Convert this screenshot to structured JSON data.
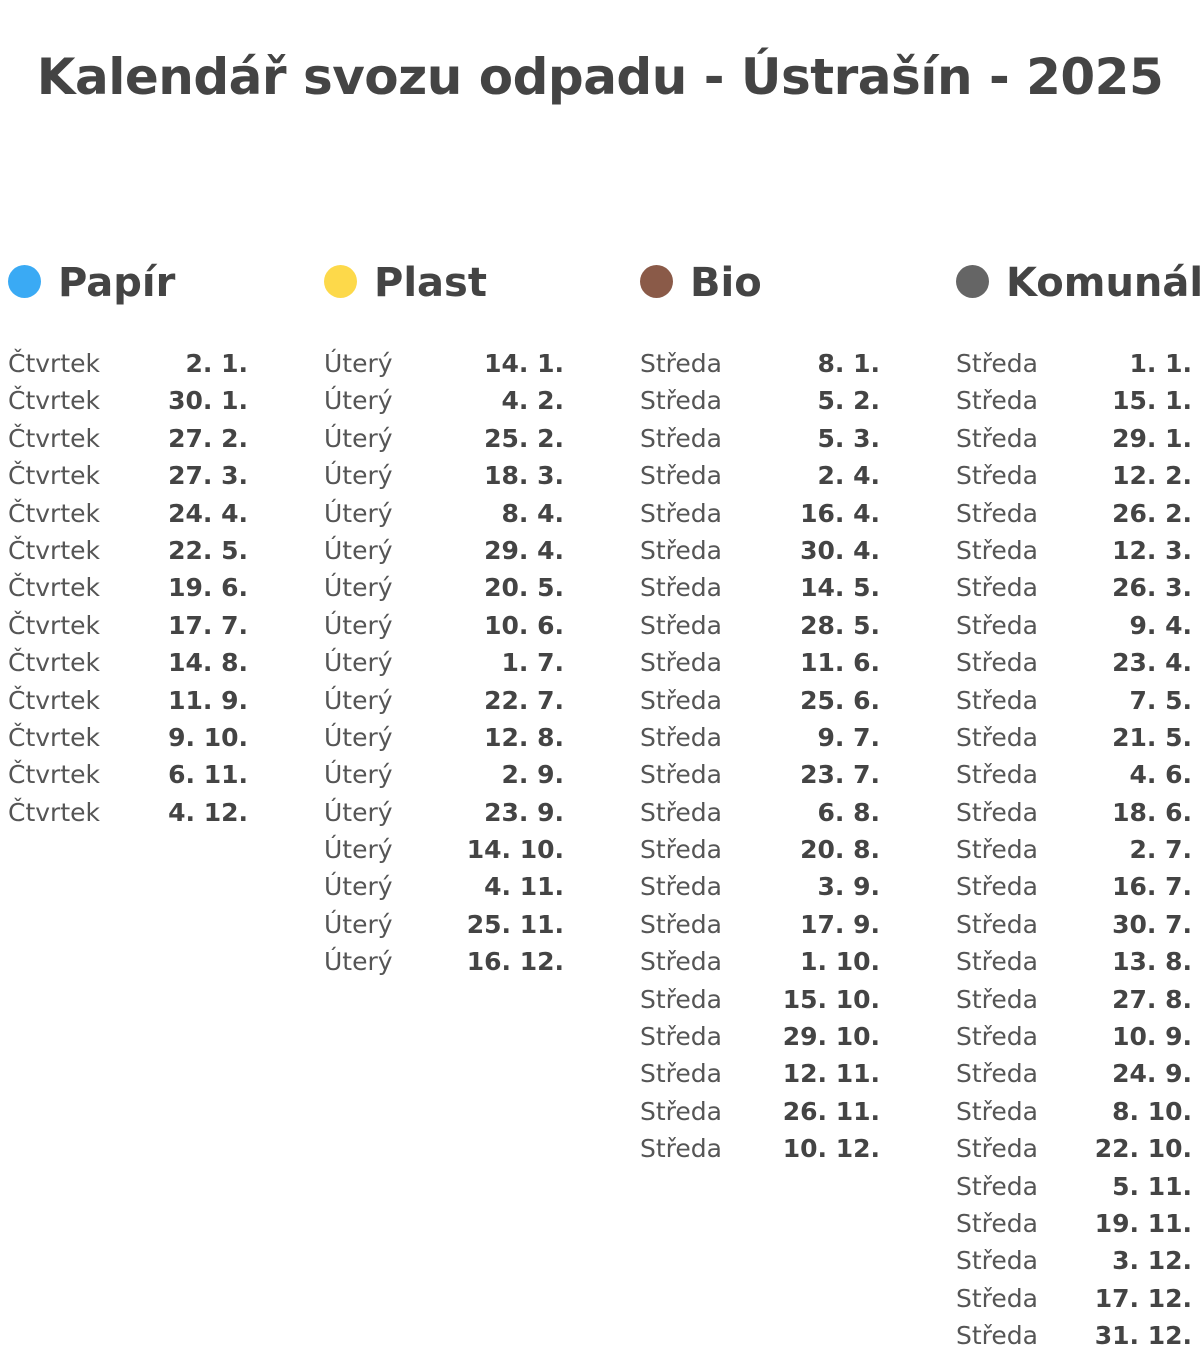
{
  "title": "Kalendář svozu odpadu - Ústrašín - 2025",
  "columns": [
    {
      "name": "Papír",
      "color": "#3aaaf4",
      "rows": [
        {
          "day": "Čtvrtek",
          "date": "2. 1."
        },
        {
          "day": "Čtvrtek",
          "date": "30. 1."
        },
        {
          "day": "Čtvrtek",
          "date": "27. 2."
        },
        {
          "day": "Čtvrtek",
          "date": "27. 3."
        },
        {
          "day": "Čtvrtek",
          "date": "24. 4."
        },
        {
          "day": "Čtvrtek",
          "date": "22. 5."
        },
        {
          "day": "Čtvrtek",
          "date": "19. 6."
        },
        {
          "day": "Čtvrtek",
          "date": "17. 7."
        },
        {
          "day": "Čtvrtek",
          "date": "14. 8."
        },
        {
          "day": "Čtvrtek",
          "date": "11. 9."
        },
        {
          "day": "Čtvrtek",
          "date": "9. 10."
        },
        {
          "day": "Čtvrtek",
          "date": "6. 11."
        },
        {
          "day": "Čtvrtek",
          "date": "4. 12."
        }
      ]
    },
    {
      "name": "Plast",
      "color": "#fdd94a",
      "rows": [
        {
          "day": "Úterý",
          "date": "14. 1."
        },
        {
          "day": "Úterý",
          "date": "4. 2."
        },
        {
          "day": "Úterý",
          "date": "25. 2."
        },
        {
          "day": "Úterý",
          "date": "18. 3."
        },
        {
          "day": "Úterý",
          "date": "8. 4."
        },
        {
          "day": "Úterý",
          "date": "29. 4."
        },
        {
          "day": "Úterý",
          "date": "20. 5."
        },
        {
          "day": "Úterý",
          "date": "10. 6."
        },
        {
          "day": "Úterý",
          "date": "1. 7."
        },
        {
          "day": "Úterý",
          "date": "22. 7."
        },
        {
          "day": "Úterý",
          "date": "12. 8."
        },
        {
          "day": "Úterý",
          "date": "2. 9."
        },
        {
          "day": "Úterý",
          "date": "23. 9."
        },
        {
          "day": "Úterý",
          "date": "14. 10."
        },
        {
          "day": "Úterý",
          "date": "4. 11."
        },
        {
          "day": "Úterý",
          "date": "25. 11."
        },
        {
          "day": "Úterý",
          "date": "16. 12."
        }
      ]
    },
    {
      "name": "Bio",
      "color": "#8a5a48",
      "rows": [
        {
          "day": "Středa",
          "date": "8. 1."
        },
        {
          "day": "Středa",
          "date": "5. 2."
        },
        {
          "day": "Středa",
          "date": "5. 3."
        },
        {
          "day": "Středa",
          "date": "2. 4."
        },
        {
          "day": "Středa",
          "date": "16. 4."
        },
        {
          "day": "Středa",
          "date": "30. 4."
        },
        {
          "day": "Středa",
          "date": "14. 5."
        },
        {
          "day": "Středa",
          "date": "28. 5."
        },
        {
          "day": "Středa",
          "date": "11. 6."
        },
        {
          "day": "Středa",
          "date": "25. 6."
        },
        {
          "day": "Středa",
          "date": "9. 7."
        },
        {
          "day": "Středa",
          "date": "23. 7."
        },
        {
          "day": "Středa",
          "date": "6. 8."
        },
        {
          "day": "Středa",
          "date": "20. 8."
        },
        {
          "day": "Středa",
          "date": "3. 9."
        },
        {
          "day": "Středa",
          "date": "17. 9."
        },
        {
          "day": "Středa",
          "date": "1. 10."
        },
        {
          "day": "Středa",
          "date": "15. 10."
        },
        {
          "day": "Středa",
          "date": "29. 10."
        },
        {
          "day": "Středa",
          "date": "12. 11."
        },
        {
          "day": "Středa",
          "date": "26. 11."
        },
        {
          "day": "Středa",
          "date": "10. 12."
        }
      ]
    },
    {
      "name": "Komunál",
      "color": "#656565",
      "rows": [
        {
          "day": "Středa",
          "date": "1. 1."
        },
        {
          "day": "Středa",
          "date": "15. 1."
        },
        {
          "day": "Středa",
          "date": "29. 1."
        },
        {
          "day": "Středa",
          "date": "12. 2."
        },
        {
          "day": "Středa",
          "date": "26. 2."
        },
        {
          "day": "Středa",
          "date": "12. 3."
        },
        {
          "day": "Středa",
          "date": "26. 3."
        },
        {
          "day": "Středa",
          "date": "9. 4."
        },
        {
          "day": "Středa",
          "date": "23. 4."
        },
        {
          "day": "Středa",
          "date": "7. 5."
        },
        {
          "day": "Středa",
          "date": "21. 5."
        },
        {
          "day": "Středa",
          "date": "4. 6."
        },
        {
          "day": "Středa",
          "date": "18. 6."
        },
        {
          "day": "Středa",
          "date": "2. 7."
        },
        {
          "day": "Středa",
          "date": "16. 7."
        },
        {
          "day": "Středa",
          "date": "30. 7."
        },
        {
          "day": "Středa",
          "date": "13. 8."
        },
        {
          "day": "Středa",
          "date": "27. 8."
        },
        {
          "day": "Středa",
          "date": "10. 9."
        },
        {
          "day": "Středa",
          "date": "24. 9."
        },
        {
          "day": "Středa",
          "date": "8. 10."
        },
        {
          "day": "Středa",
          "date": "22. 10."
        },
        {
          "day": "Středa",
          "date": "5. 11."
        },
        {
          "day": "Středa",
          "date": "19. 11."
        },
        {
          "day": "Středa",
          "date": "3. 12."
        },
        {
          "day": "Středa",
          "date": "17. 12."
        },
        {
          "day": "Středa",
          "date": "31. 12."
        }
      ]
    }
  ]
}
